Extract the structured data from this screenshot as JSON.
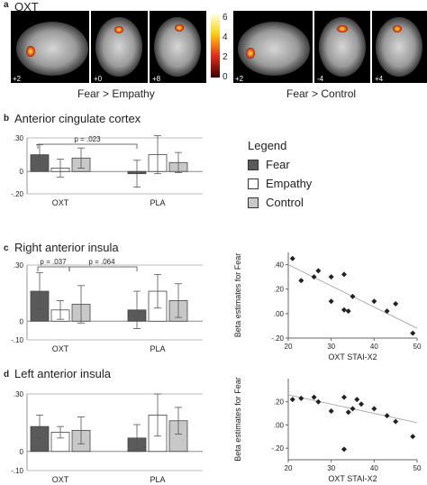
{
  "panel_a": {
    "letter": "a",
    "title": "OXT",
    "colorbar_ticks": [
      "6",
      "4",
      "2",
      "0"
    ],
    "left_caption": "Fear > Empathy",
    "right_caption": "Fear > Control",
    "slice_labels": [
      "+2",
      "+0",
      "+8",
      "+2",
      "-4",
      "+4"
    ]
  },
  "legend": {
    "title": "Legend",
    "items": [
      {
        "label": "Fear",
        "color": "#5a5a5a"
      },
      {
        "label": "Empathy",
        "color": "#ffffff"
      },
      {
        "label": "Control",
        "color": "#c8c8c8"
      }
    ]
  },
  "colors": {
    "fear": "#5a5a5a",
    "empathy": "#ffffff",
    "control": "#c8c8c8"
  },
  "chart_data": [
    {
      "panel": "b",
      "type": "bar",
      "title": "Anterior cingulate cortex",
      "categories": [
        "OXT",
        "PLA"
      ],
      "series": [
        {
          "name": "Fear",
          "values": [
            0.15,
            -0.02
          ],
          "err": [
            0.09,
            0.12
          ]
        },
        {
          "name": "Empathy",
          "values": [
            0.03,
            0.15
          ],
          "err": [
            0.08,
            0.17
          ]
        },
        {
          "name": "Control",
          "values": [
            0.12,
            0.08
          ],
          "err": [
            0.09,
            0.09
          ]
        }
      ],
      "ylim": [
        -0.2,
        0.3
      ],
      "yticks": [
        {
          "value": 0.3,
          "label": ".30"
        },
        {
          "value": 0,
          "label": "0"
        },
        {
          "value": -0.2,
          "label": "-.20"
        }
      ],
      "annotations": [
        {
          "text": "p = .023"
        }
      ]
    },
    {
      "panel": "c",
      "type": "bar",
      "title": "Right anterior insula",
      "categories": [
        "OXT",
        "PLA"
      ],
      "series": [
        {
          "name": "Fear",
          "values": [
            0.16,
            0.06
          ],
          "err": [
            0.1,
            0.1
          ]
        },
        {
          "name": "Empathy",
          "values": [
            0.06,
            0.16
          ],
          "err": [
            0.05,
            0.09
          ]
        },
        {
          "name": "Control",
          "values": [
            0.09,
            0.11
          ],
          "err": [
            0.1,
            0.09
          ]
        }
      ],
      "ylim": [
        -0.1,
        0.3
      ],
      "yticks": [
        {
          "value": 0.3,
          "label": ".30"
        },
        {
          "value": 0,
          "label": "0"
        },
        {
          "value": -0.1,
          "label": "-.10"
        }
      ],
      "annotations": [
        {
          "text": "p = .037"
        },
        {
          "text": "p = .064"
        }
      ]
    },
    {
      "panel": "d",
      "type": "bar",
      "title": "Left anterior insula",
      "categories": [
        "OXT",
        "PLA"
      ],
      "series": [
        {
          "name": "Fear",
          "values": [
            0.13,
            0.07
          ],
          "err": [
            0.06,
            0.07
          ]
        },
        {
          "name": "Empathy",
          "values": [
            0.1,
            0.19
          ],
          "err": [
            0.03,
            0.11
          ]
        },
        {
          "name": "Control",
          "values": [
            0.11,
            0.16
          ],
          "err": [
            0.07,
            0.07
          ]
        }
      ],
      "ylim": [
        -0.1,
        0.3
      ],
      "yticks": [
        {
          "value": 0.3,
          "label": ".30"
        },
        {
          "value": 0,
          "label": "0"
        },
        {
          "value": -0.1,
          "label": "-.10"
        }
      ],
      "annotations": []
    },
    {
      "panel": "c-scatter",
      "type": "scatter",
      "xlabel": "OXT STAI-X2",
      "ylabel": "Beta estimates for Fear",
      "xlim": [
        20,
        50
      ],
      "ylim": [
        -0.2,
        0.5
      ],
      "xticks": [
        20,
        30,
        40,
        50
      ],
      "yticks": [
        {
          "value": 0.4,
          "label": ".40"
        },
        {
          "value": 0.2,
          "label": ".20"
        },
        {
          "value": 0.0,
          "label": ".00"
        },
        {
          "value": -0.2,
          "label": "-.20"
        }
      ],
      "points": [
        [
          21,
          0.45
        ],
        [
          23,
          0.27
        ],
        [
          26,
          0.3
        ],
        [
          27,
          0.35
        ],
        [
          30,
          0.1
        ],
        [
          30,
          0.3
        ],
        [
          33,
          0.32
        ],
        [
          33,
          0.03
        ],
        [
          34,
          0.02
        ],
        [
          35,
          0.14
        ],
        [
          40,
          0.1
        ],
        [
          43,
          0.02
        ],
        [
          45,
          0.08
        ],
        [
          49,
          -0.16
        ]
      ],
      "fit": [
        [
          20,
          0.4
        ],
        [
          50,
          -0.12
        ]
      ]
    },
    {
      "panel": "d-scatter",
      "type": "scatter",
      "xlabel": "OXT STAI-X2",
      "ylabel": "Beta estimates for Fear",
      "xlim": [
        20,
        50
      ],
      "ylim": [
        -0.3,
        0.4
      ],
      "xticks": [
        20,
        30,
        40,
        50
      ],
      "yticks": [
        {
          "value": 0.2,
          "label": ".20"
        },
        {
          "value": 0.0,
          "label": ".00"
        },
        {
          "value": -0.2,
          "label": "-.20"
        }
      ],
      "points": [
        [
          21,
          0.22
        ],
        [
          23,
          0.23
        ],
        [
          26,
          0.24
        ],
        [
          27,
          0.2
        ],
        [
          30,
          0.12
        ],
        [
          33,
          0.24
        ],
        [
          34,
          0.11
        ],
        [
          35,
          0.14
        ],
        [
          36,
          0.22
        ],
        [
          37,
          0.18
        ],
        [
          40,
          0.14
        ],
        [
          43,
          0.08
        ],
        [
          45,
          0.03
        ],
        [
          49,
          -0.1
        ],
        [
          33,
          -0.21
        ]
      ],
      "fit": [
        [
          20,
          0.26
        ],
        [
          50,
          0.02
        ]
      ]
    }
  ]
}
